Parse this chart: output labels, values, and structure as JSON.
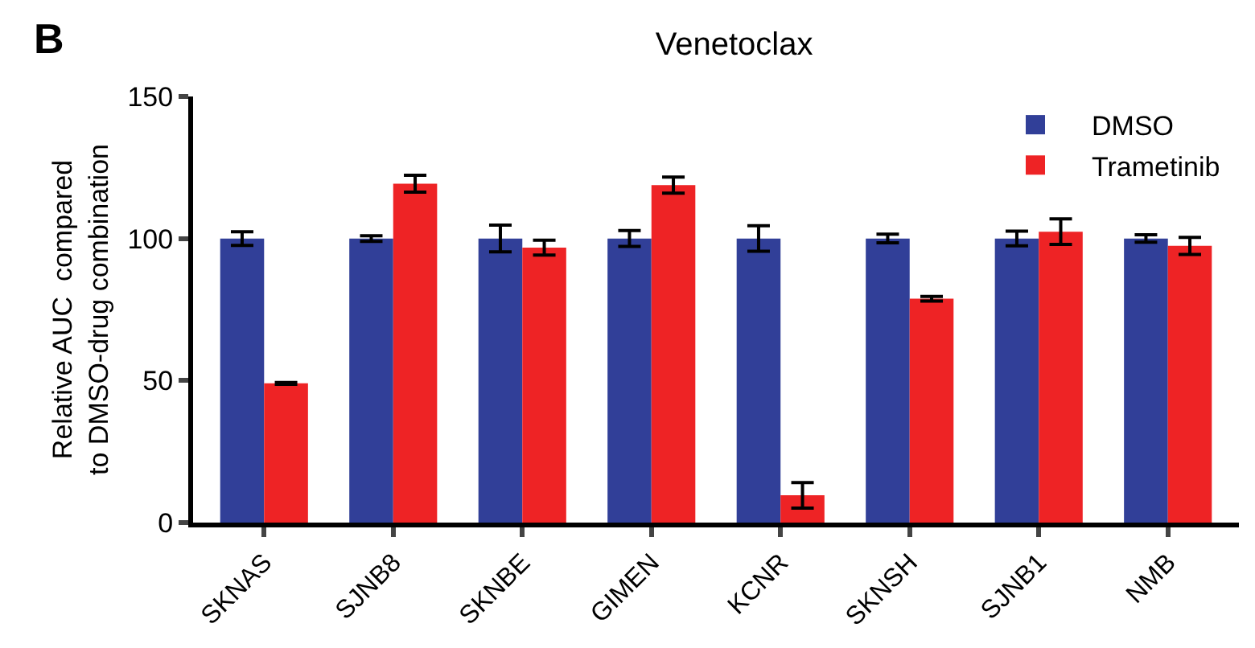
{
  "chart_data": {
    "type": "bar",
    "title": "Venetoclax",
    "ylabel": "Relative AUC  compared\nto DMSO-drug combination",
    "annotations": [
      "B"
    ],
    "categories": [
      "SKNAS",
      "SJNB8",
      "SKNBE",
      "GIMEN",
      "KCNR",
      "SKNSH",
      "SJNB1",
      "NMB"
    ],
    "series": [
      {
        "name": "DMSO",
        "color": "#313f98",
        "values": [
          100,
          100,
          100,
          100,
          100,
          100,
          100,
          100
        ],
        "errors": [
          2.4,
          1,
          4.7,
          2.8,
          4.5,
          1.5,
          2.6,
          1.3
        ]
      },
      {
        "name": "Trametinib",
        "color": "#ee2325",
        "values": [
          49,
          119.3,
          96.8,
          118.8,
          9.6,
          78.8,
          102.4,
          97.4
        ],
        "errors": [
          0.3,
          3,
          2.6,
          2.8,
          4.5,
          0.8,
          4.5,
          3
        ]
      }
    ],
    "ylim": [
      0,
      150
    ],
    "yticks": [
      0,
      50,
      100,
      150
    ],
    "legend": "top right"
  }
}
